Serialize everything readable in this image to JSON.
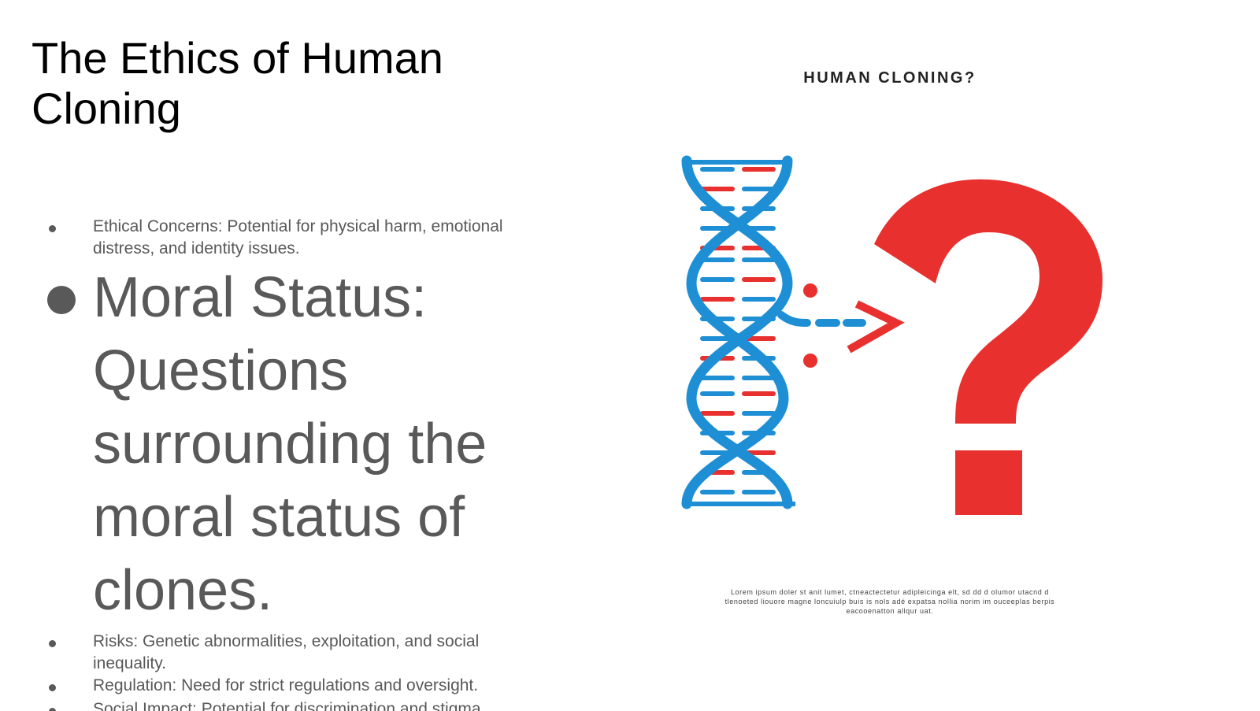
{
  "slide": {
    "title": "The Ethics of Human Cloning",
    "bullets": [
      {
        "text": "Ethical Concerns: Potential for physical harm, emotional distress, and identity issues.",
        "size": "small"
      },
      {
        "text": "Moral Status: Questions surrounding the moral status of clones.",
        "size": "large"
      },
      {
        "text": "Risks: Genetic abnormalities, exploitation, and social inequality.",
        "size": "small"
      },
      {
        "text": "Regulation: Need for strict regulations and oversight.",
        "size": "small"
      },
      {
        "text": "Social Impact: Potential for discrimination and stigma.",
        "size": "cut"
      }
    ]
  },
  "illustration": {
    "title": "HUMAN CLONING?",
    "caption": "Lorem ipsum doler st anit lumet, ctneactectetur adipleicinga elt, sd dd d olumor utacnd d tlenoeted liouore magne loncuiulp buis is nols adé expatsa nollia norim im ouceeplas berpis eacooenatton allqur uat.",
    "colors": {
      "dna": "#1E8FD5",
      "accent": "#E8312F"
    },
    "icons": [
      "dna-helix-icon",
      "question-mark-icon",
      "arrow-icon"
    ]
  }
}
